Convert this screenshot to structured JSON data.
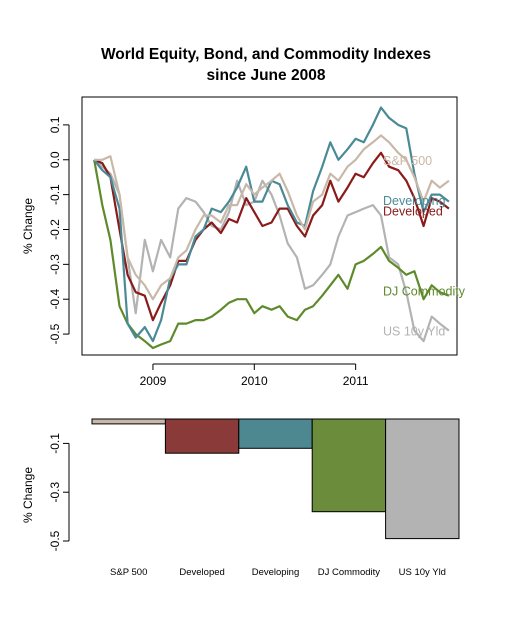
{
  "chart_data": [
    {
      "type": "line",
      "title_line1": "World Equity, Bond, and Commodity Indexes",
      "title_line2": "since June 2008",
      "ylabel": "% Change",
      "xlabel": "",
      "xlim": [
        2008.3,
        2012.0
      ],
      "ylim": [
        -0.56,
        0.18
      ],
      "y_ticks": [
        0.1,
        0.0,
        -0.1,
        -0.2,
        -0.3,
        -0.4,
        -0.5
      ],
      "y_tick_labels": [
        "0.1",
        "0.0",
        "-0.1",
        "-0.2",
        "-0.3",
        "-0.4",
        "-0.5"
      ],
      "x_ticks": [
        2009,
        2010,
        2011
      ],
      "x_tick_labels": [
        "2009",
        "2010",
        "2011"
      ],
      "grid": false,
      "series": [
        {
          "name": "US 10y Yld",
          "color": "#b3b3b3",
          "x": [
            2008.42,
            2008.5,
            2008.58,
            2008.67,
            2008.75,
            2008.83,
            2008.92,
            2009.0,
            2009.08,
            2009.17,
            2009.25,
            2009.33,
            2009.42,
            2009.5,
            2009.58,
            2009.67,
            2009.75,
            2009.83,
            2009.92,
            2010.0,
            2010.08,
            2010.17,
            2010.25,
            2010.33,
            2010.42,
            2010.5,
            2010.58,
            2010.67,
            2010.75,
            2010.83,
            2010.92,
            2011.0,
            2011.08,
            2011.17,
            2011.25,
            2011.33,
            2011.42,
            2011.5,
            2011.58,
            2011.67,
            2011.75,
            2011.83,
            2011.92
          ],
          "y": [
            0.0,
            -0.02,
            -0.04,
            -0.1,
            -0.28,
            -0.44,
            -0.23,
            -0.32,
            -0.23,
            -0.28,
            -0.14,
            -0.11,
            -0.12,
            -0.15,
            -0.19,
            -0.2,
            -0.15,
            -0.06,
            -0.13,
            -0.12,
            -0.06,
            -0.1,
            -0.16,
            -0.24,
            -0.28,
            -0.37,
            -0.36,
            -0.33,
            -0.3,
            -0.22,
            -0.16,
            -0.15,
            -0.14,
            -0.13,
            -0.16,
            -0.28,
            -0.3,
            -0.38,
            -0.49,
            -0.52,
            -0.45,
            -0.47,
            -0.49
          ]
        },
        {
          "name": "DJ Commodity",
          "color": "#5e8a2c",
          "x": [
            2008.42,
            2008.5,
            2008.58,
            2008.67,
            2008.75,
            2008.83,
            2008.92,
            2009.0,
            2009.08,
            2009.17,
            2009.25,
            2009.33,
            2009.42,
            2009.5,
            2009.58,
            2009.67,
            2009.75,
            2009.83,
            2009.92,
            2010.0,
            2010.08,
            2010.17,
            2010.25,
            2010.33,
            2010.42,
            2010.5,
            2010.58,
            2010.67,
            2010.75,
            2010.83,
            2010.92,
            2011.0,
            2011.08,
            2011.17,
            2011.25,
            2011.33,
            2011.42,
            2011.5,
            2011.58,
            2011.67,
            2011.75,
            2011.83,
            2011.92
          ],
          "y": [
            0.0,
            -0.13,
            -0.23,
            -0.42,
            -0.47,
            -0.5,
            -0.52,
            -0.54,
            -0.53,
            -0.52,
            -0.47,
            -0.47,
            -0.46,
            -0.46,
            -0.45,
            -0.43,
            -0.41,
            -0.4,
            -0.4,
            -0.44,
            -0.42,
            -0.43,
            -0.42,
            -0.45,
            -0.46,
            -0.43,
            -0.42,
            -0.39,
            -0.36,
            -0.33,
            -0.37,
            -0.3,
            -0.29,
            -0.27,
            -0.25,
            -0.29,
            -0.31,
            -0.33,
            -0.32,
            -0.4,
            -0.36,
            -0.38,
            -0.39
          ]
        },
        {
          "name": "Developed",
          "color": "#8b1a1a",
          "x": [
            2008.42,
            2008.5,
            2008.58,
            2008.67,
            2008.75,
            2008.83,
            2008.92,
            2009.0,
            2009.08,
            2009.17,
            2009.25,
            2009.33,
            2009.42,
            2009.5,
            2009.58,
            2009.67,
            2009.75,
            2009.83,
            2009.92,
            2010.0,
            2010.08,
            2010.17,
            2010.25,
            2010.33,
            2010.42,
            2010.5,
            2010.58,
            2010.67,
            2010.75,
            2010.83,
            2010.92,
            2011.0,
            2011.08,
            2011.17,
            2011.25,
            2011.33,
            2011.42,
            2011.5,
            2011.58,
            2011.67,
            2011.75,
            2011.83,
            2011.92
          ],
          "y": [
            0.0,
            -0.01,
            -0.05,
            -0.2,
            -0.33,
            -0.38,
            -0.39,
            -0.46,
            -0.41,
            -0.36,
            -0.29,
            -0.29,
            -0.23,
            -0.2,
            -0.18,
            -0.21,
            -0.17,
            -0.18,
            -0.11,
            -0.15,
            -0.19,
            -0.18,
            -0.14,
            -0.14,
            -0.19,
            -0.22,
            -0.16,
            -0.13,
            -0.06,
            -0.12,
            -0.08,
            -0.04,
            -0.05,
            -0.01,
            0.02,
            -0.02,
            -0.03,
            -0.06,
            -0.11,
            -0.19,
            -0.11,
            -0.12,
            -0.14
          ]
        },
        {
          "name": "Developing",
          "color": "#4a8a96",
          "x": [
            2008.42,
            2008.5,
            2008.58,
            2008.67,
            2008.75,
            2008.83,
            2008.92,
            2009.0,
            2009.08,
            2009.17,
            2009.25,
            2009.33,
            2009.42,
            2009.5,
            2009.58,
            2009.67,
            2009.75,
            2009.83,
            2009.92,
            2010.0,
            2010.08,
            2010.17,
            2010.25,
            2010.33,
            2010.42,
            2010.5,
            2010.58,
            2010.67,
            2010.75,
            2010.83,
            2010.92,
            2011.0,
            2011.08,
            2011.17,
            2011.25,
            2011.33,
            2011.42,
            2011.5,
            2011.58,
            2011.67,
            2011.75,
            2011.83,
            2011.92
          ],
          "y": [
            0.0,
            -0.03,
            -0.05,
            -0.14,
            -0.47,
            -0.51,
            -0.48,
            -0.52,
            -0.46,
            -0.34,
            -0.3,
            -0.3,
            -0.22,
            -0.2,
            -0.14,
            -0.15,
            -0.12,
            -0.08,
            -0.02,
            -0.12,
            -0.12,
            -0.06,
            -0.07,
            -0.13,
            -0.18,
            -0.19,
            -0.09,
            -0.02,
            0.05,
            0.0,
            0.03,
            0.06,
            0.05,
            0.1,
            0.15,
            0.12,
            0.1,
            0.09,
            -0.04,
            -0.15,
            -0.1,
            -0.1,
            -0.12
          ]
        },
        {
          "name": "S&P 500",
          "color": "#c8b8a8",
          "x": [
            2008.42,
            2008.5,
            2008.58,
            2008.67,
            2008.75,
            2008.83,
            2008.92,
            2009.0,
            2009.08,
            2009.17,
            2009.25,
            2009.33,
            2009.42,
            2009.5,
            2009.58,
            2009.67,
            2009.75,
            2009.83,
            2009.92,
            2010.0,
            2010.08,
            2010.17,
            2010.25,
            2010.33,
            2010.42,
            2010.5,
            2010.58,
            2010.67,
            2010.75,
            2010.83,
            2010.92,
            2011.0,
            2011.08,
            2011.17,
            2011.25,
            2011.33,
            2011.42,
            2011.5,
            2011.58,
            2011.67,
            2011.75,
            2011.83,
            2011.92
          ],
          "y": [
            0.0,
            0.0,
            0.01,
            -0.1,
            -0.28,
            -0.33,
            -0.36,
            -0.4,
            -0.36,
            -0.34,
            -0.28,
            -0.26,
            -0.2,
            -0.16,
            -0.16,
            -0.18,
            -0.13,
            -0.13,
            -0.07,
            -0.1,
            -0.08,
            -0.06,
            -0.04,
            -0.09,
            -0.16,
            -0.2,
            -0.12,
            -0.1,
            -0.04,
            -0.06,
            -0.02,
            0.0,
            0.03,
            0.05,
            0.07,
            0.05,
            0.02,
            0.0,
            -0.05,
            -0.12,
            -0.06,
            -0.08,
            -0.06
          ]
        }
      ],
      "end_labels": [
        {
          "text": "S&P 500",
          "color": "#c8b8a8",
          "y": 0.0
        },
        {
          "text": "Developing",
          "color": "#4a8a96",
          "y": -0.115
        },
        {
          "text": "Developed",
          "color": "#8b1a1a",
          "y": -0.145
        },
        {
          "text": "DJ Commodity",
          "color": "#5e8a2c",
          "y": -0.375
        },
        {
          "text": "US 10y Yld",
          "color": "#b3b3b3",
          "y": -0.49
        }
      ]
    },
    {
      "type": "bar",
      "ylabel": "% Change",
      "ylim": [
        -0.5,
        0.0
      ],
      "y_ticks": [
        -0.1,
        -0.3,
        -0.5
      ],
      "y_tick_labels": [
        "-0.1",
        "-0.3",
        "-0.5"
      ],
      "categories": [
        "S&P 500",
        "Developed",
        "Developing",
        "DJ Commodity",
        "US 10y Yld"
      ],
      "values": [
        -0.02,
        -0.14,
        -0.12,
        -0.38,
        -0.49
      ],
      "colors": [
        "#c8b8a8",
        "#8b3a3a",
        "#4d8790",
        "#6b8c3a",
        "#b3b3b3"
      ]
    }
  ]
}
